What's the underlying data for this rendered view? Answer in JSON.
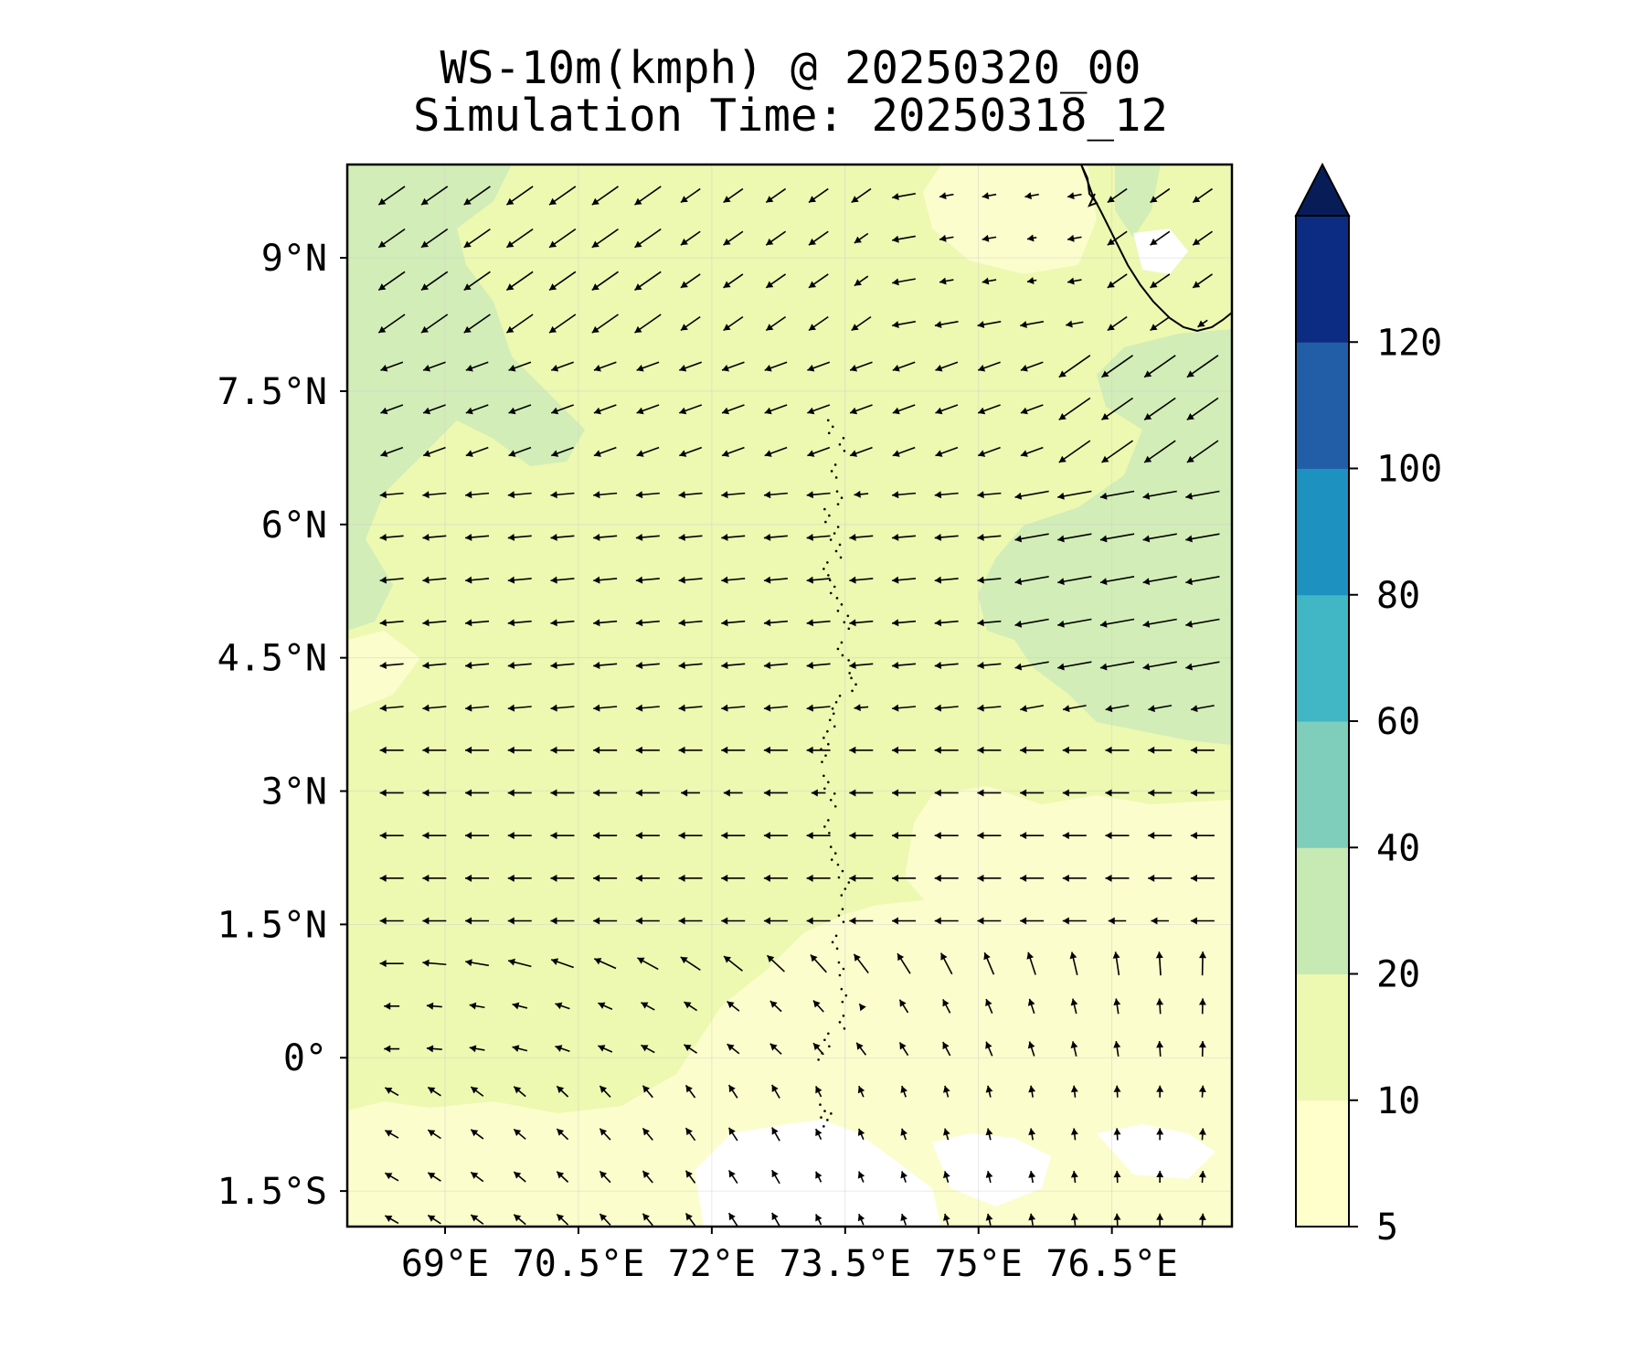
{
  "title": {
    "line1": "WS-10m(kmph) @ 20250320_00",
    "line2": "Simulation Time: 20250318_12"
  },
  "map": {
    "lat_range": [
      -1.9,
      10.05
    ],
    "lon_range": [
      67.9,
      77.85
    ],
    "lat_ticks": [
      {
        "value": 9,
        "label": "9°N"
      },
      {
        "value": 7.5,
        "label": "7.5°N"
      },
      {
        "value": 6,
        "label": "6°N"
      },
      {
        "value": 4.5,
        "label": "4.5°N"
      },
      {
        "value": 3,
        "label": "3°N"
      },
      {
        "value": 1.5,
        "label": "1.5°N"
      },
      {
        "value": 0,
        "label": "0°"
      },
      {
        "value": -1.5,
        "label": "1.5°S"
      }
    ],
    "lon_ticks": [
      {
        "value": 69,
        "label": "69°E"
      },
      {
        "value": 70.5,
        "label": "70.5°E"
      },
      {
        "value": 72,
        "label": "72°E"
      },
      {
        "value": 73.5,
        "label": "73.5°E"
      },
      {
        "value": 75,
        "label": "75°E"
      },
      {
        "value": 76.5,
        "label": "76.5°E"
      }
    ],
    "colorbar": {
      "levels": [
        5,
        10,
        20,
        40,
        60,
        80,
        100,
        120
      ],
      "labels": [
        "5",
        "10",
        "20",
        "40",
        "60",
        "80",
        "100",
        "120"
      ],
      "colors": [
        "#ffffcc",
        "#edf8b1",
        "#c7e9b4",
        "#7fcdbb",
        "#41b6c4",
        "#1d91c0",
        "#225ea8",
        "#0c2c84"
      ],
      "extend_color": "#081d58",
      "extend": "max"
    },
    "colors": {
      "background_field": "#edf8b1",
      "low_speed": "#ffffcc",
      "high_speed": "#d2edb7",
      "calm": "#ffffff",
      "arrow": "#000000"
    }
  }
}
